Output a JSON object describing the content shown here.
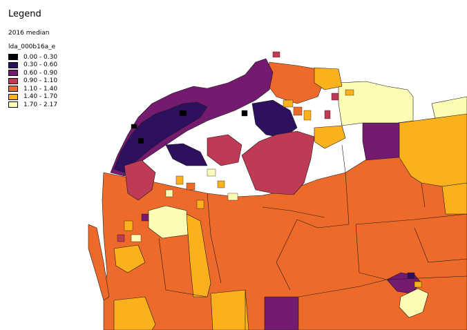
{
  "legend": {
    "title": "Legend",
    "subtitle": "2016 median",
    "layer_name": "lda_000b16a_e",
    "classes": [
      {
        "label": "0.00 - 0.30",
        "color": "#000004"
      },
      {
        "label": "0.30 - 0.60",
        "color": "#2d115f"
      },
      {
        "label": "0.60 - 0.90",
        "color": "#741a6f"
      },
      {
        "label": "0.90 - 1.10",
        "color": "#bf3a54"
      },
      {
        "label": "1.10 - 1.40",
        "color": "#ee6a2a"
      },
      {
        "label": "1.40 - 1.70",
        "color": "#fbb11b"
      },
      {
        "label": "1.70 - 2.17",
        "color": "#fcfcb4"
      }
    ]
  },
  "map": {
    "boundary_color": "#1a1a1a",
    "water_color": "#ffffff"
  }
}
